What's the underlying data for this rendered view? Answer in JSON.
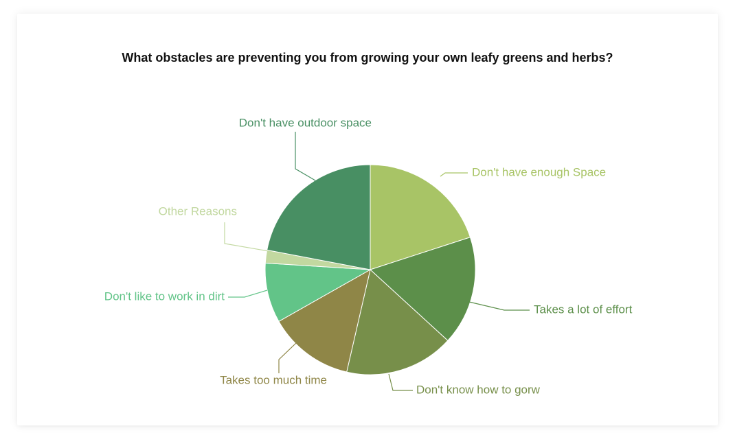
{
  "chart_data": {
    "type": "pie",
    "title": "What obstacles are preventing you from growing your own leafy greens and herbs?",
    "start_angle_deg": 0,
    "direction": "clockwise",
    "slices": [
      {
        "label": "Don't have enough Space",
        "value": 20.0,
        "color": "#a8c466"
      },
      {
        "label": "Takes a lot of effort",
        "value": 16.8,
        "color": "#5c8f4a"
      },
      {
        "label": "Don't know how to gorw",
        "value": 16.8,
        "color": "#778f4a"
      },
      {
        "label": "Takes too much time",
        "value": 13.2,
        "color": "#8f8647"
      },
      {
        "label": "Don't like to work in dirt",
        "value": 9.2,
        "color": "#62c488"
      },
      {
        "label": "Other Reasons",
        "value": 2.0,
        "color": "#c2d8a0"
      },
      {
        "label": "Don't have outdoor space",
        "value": 22.0,
        "color": "#488f63"
      }
    ]
  }
}
